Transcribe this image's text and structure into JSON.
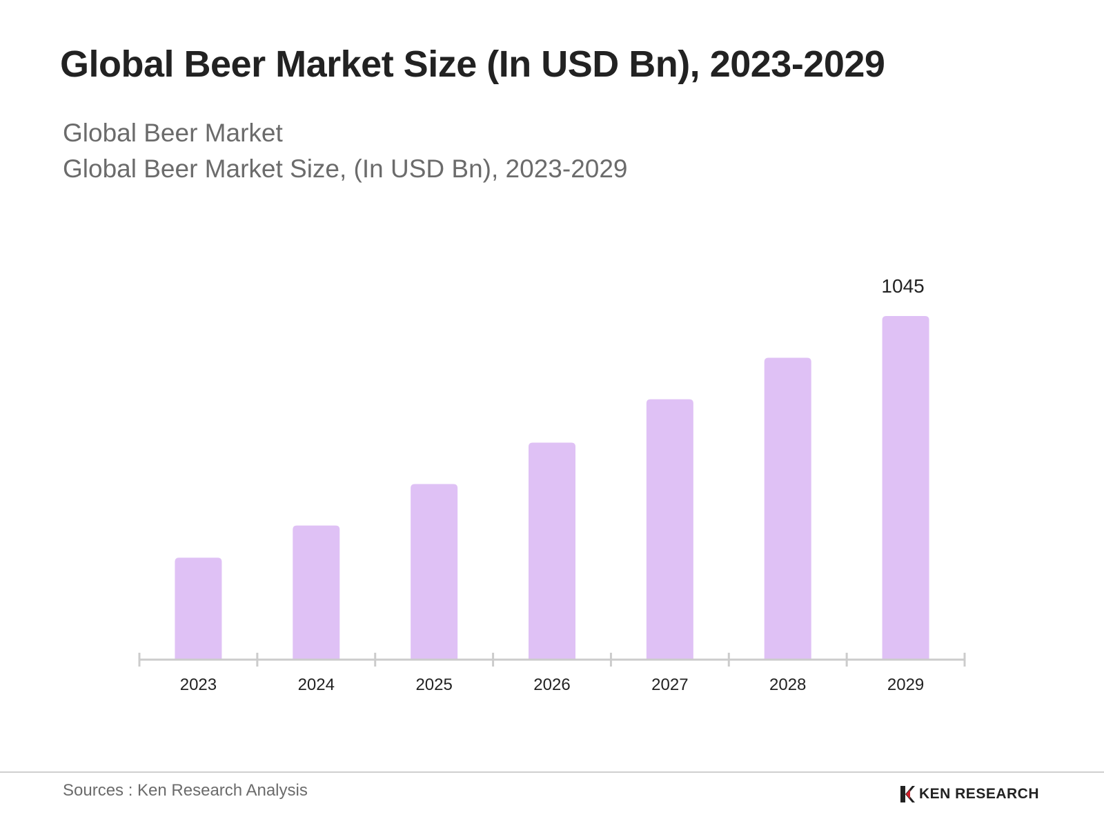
{
  "title": "Global Beer Market Size (In USD Bn), 2023-2029",
  "subtitle_line1": "Global Beer Market",
  "subtitle_line2": "Global Beer Market Size, (In USD Bn), 2023-2029",
  "chart_data": {
    "type": "bar",
    "categories": [
      "2023",
      "2024",
      "2025",
      "2026",
      "2027",
      "2028",
      "2029"
    ],
    "values": [
      310,
      408,
      534,
      660,
      792,
      918,
      1045
    ],
    "data_labels": [
      {
        "category": "2029",
        "text": "1045"
      }
    ],
    "ylim": [
      0,
      1045
    ],
    "grid": false,
    "legend": "none",
    "bar_color": "#dfc1f5",
    "axis_color": "#cccccc"
  },
  "footer": {
    "source": "Sources : Ken Research Analysis",
    "brand": "KEN RESEARCH",
    "brand_accent": "#d21f2b"
  }
}
